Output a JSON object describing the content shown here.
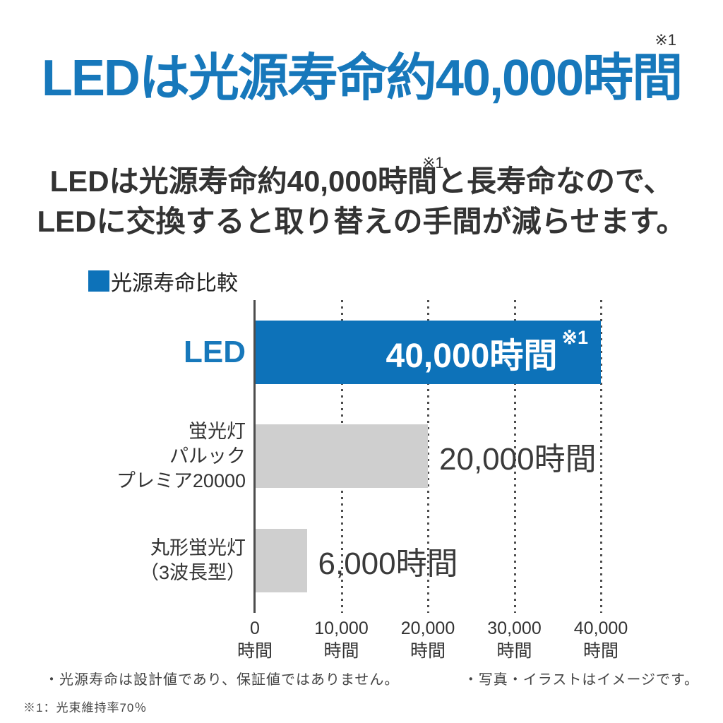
{
  "colors": {
    "title_blue": "#1778bb",
    "bar_blue": "#0d72b9",
    "bar_gray": "#cfcfcf",
    "text_dark": "#333333",
    "axis_gray": "#4d4d4d"
  },
  "header": {
    "note": "※1",
    "title": "LEDは光源寿命約40,000時間"
  },
  "lead": {
    "note": "※1",
    "line1": "LEDは光源寿命約40,000時間と長寿命なので、",
    "line2": "LEDに交換すると取り替えの手間が減らせます。"
  },
  "chart_data": {
    "type": "bar",
    "orientation": "horizontal",
    "title": "光源寿命比較",
    "legend_position": "top-left",
    "grid": "dotted-vertical",
    "unit": "時間",
    "xlim": [
      0,
      40000
    ],
    "xticks": [
      {
        "value": 0,
        "label": "0",
        "unit": "時間"
      },
      {
        "value": 10000,
        "label": "10,000",
        "unit": "時間"
      },
      {
        "value": 20000,
        "label": "20,000",
        "unit": "時間"
      },
      {
        "value": 30000,
        "label": "30,000",
        "unit": "時間"
      },
      {
        "value": 40000,
        "label": "40,000",
        "unit": "時間"
      }
    ],
    "series": [
      {
        "id": "led",
        "category_lines": [
          "LED"
        ],
        "category_style": "led",
        "value": 40000,
        "value_label": "40,000時間",
        "value_note": "※1",
        "bar_style": "blue",
        "value_position": "inside"
      },
      {
        "id": "fluorescent-palook-premia-20000",
        "category_lines": [
          "蛍光灯",
          "パルック",
          "プレミア20000"
        ],
        "category_style": "plain",
        "value": 20000,
        "value_label": "20,000時間",
        "value_note": "",
        "bar_style": "gray",
        "value_position": "outside"
      },
      {
        "id": "round-fluorescent-3-wave",
        "category_lines": [
          "丸形蛍光灯",
          "（3波長型）"
        ],
        "category_style": "plain",
        "value": 6000,
        "value_label": "6,000時間",
        "value_note": "",
        "bar_style": "gray",
        "value_position": "outside"
      }
    ]
  },
  "footnotes": {
    "left": "・光源寿命は設計値であり、保証値ではありません。",
    "right": "・写真・イラストはイメージです。",
    "bottom": "※1：光束維持率70％"
  }
}
